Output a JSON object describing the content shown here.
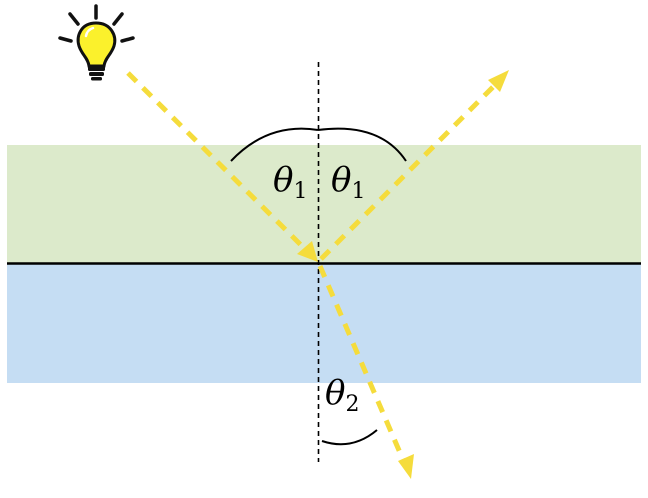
{
  "labels": {
    "incident_angle": {
      "symbol": "θ",
      "subscript": "1"
    },
    "reflected_angle": {
      "symbol": "θ",
      "subscript": "1"
    },
    "refracted_angle": {
      "symbol": "θ",
      "subscript": "2"
    }
  },
  "colors": {
    "upper_medium": "#dceacb",
    "lower_medium": "#c5ddf3",
    "ray": "#f5dc3c",
    "bulb": "#fbf12c",
    "bulb_outline": "#111111",
    "interface_line": "#000000",
    "normal_line": "#000000",
    "arc": "#000000"
  },
  "icons": {
    "light_source": "lightbulb-icon"
  }
}
